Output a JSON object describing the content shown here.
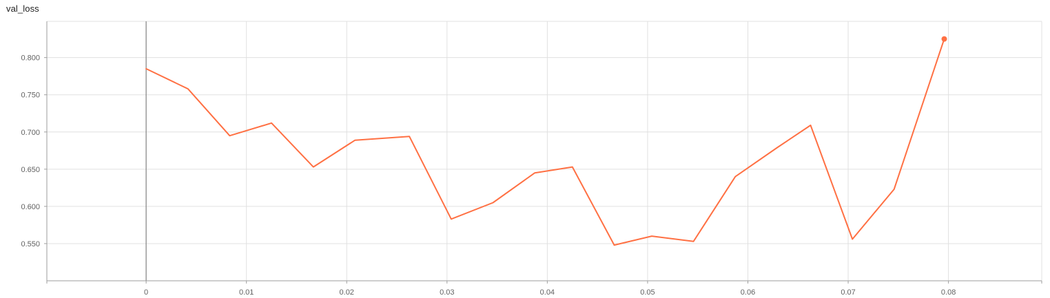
{
  "chart_data": {
    "type": "line",
    "title": "val_loss",
    "xlabel": "",
    "ylabel": "",
    "xlim": [
      -0.0099,
      0.0893
    ],
    "ylim": [
      0.5,
      0.8487
    ],
    "x_ticks": [
      "0",
      "0.01",
      "0.02",
      "0.03",
      "0.04",
      "0.05",
      "0.06",
      "0.07",
      "0.08"
    ],
    "y_ticks": [
      "0.550",
      "0.600",
      "0.650",
      "0.700",
      "0.750",
      "0.800"
    ],
    "grid": true,
    "series": [
      {
        "color": "#ff7043",
        "x": [
          0,
          0.00417,
          0.00833,
          0.0125,
          0.01667,
          0.02083,
          0.02625,
          0.03042,
          0.03458,
          0.03875,
          0.0425,
          0.04667,
          0.05042,
          0.05458,
          0.05875,
          0.06292,
          0.06625,
          0.07042,
          0.07458,
          0.07958
        ],
        "y": [
          0.785,
          0.758,
          0.695,
          0.712,
          0.653,
          0.689,
          0.694,
          0.583,
          0.605,
          0.645,
          0.653,
          0.548,
          0.56,
          0.553,
          0.64,
          0.679,
          0.709,
          0.556,
          0.623,
          0.825
        ]
      }
    ]
  }
}
